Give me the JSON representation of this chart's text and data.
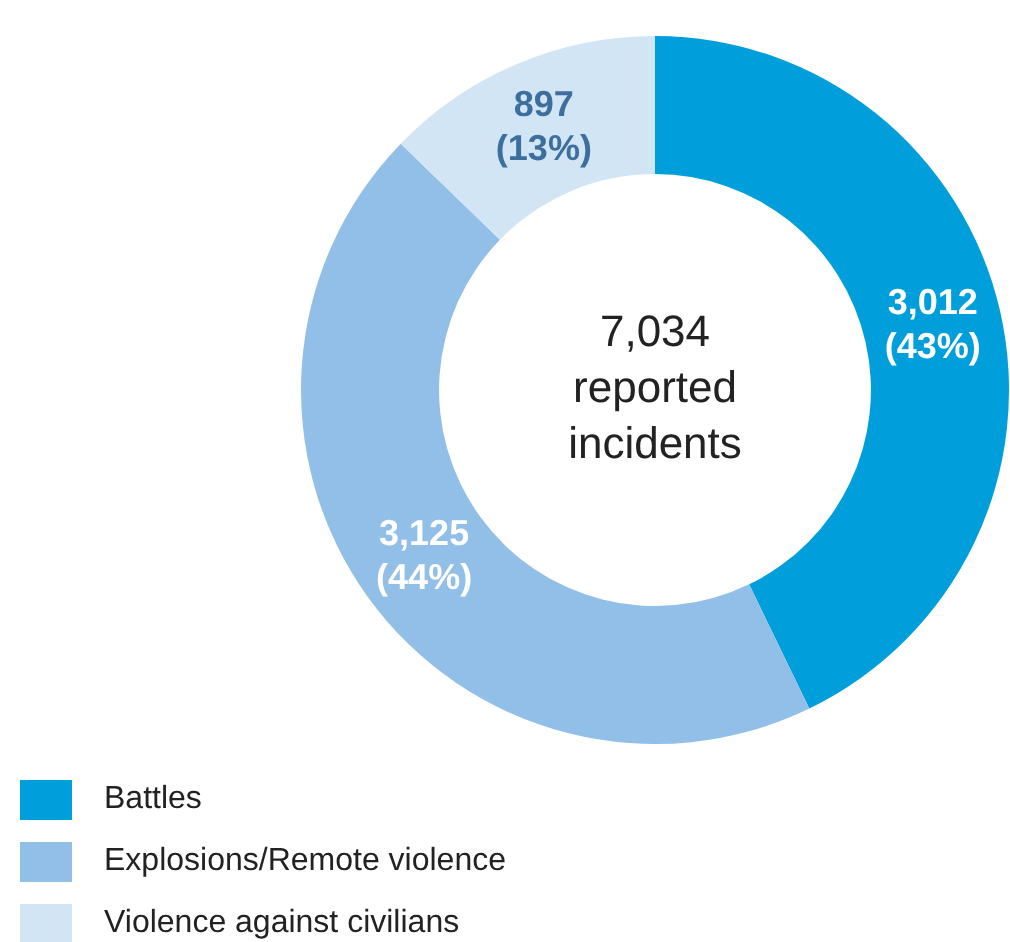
{
  "chart_data": {
    "type": "donut",
    "categories": [
      "Battles",
      "Explosions/Remote violence",
      "Violence against civilians"
    ],
    "values": [
      3012,
      3125,
      897
    ],
    "colors": [
      "#009edb",
      "#92bfe7",
      "#d2e5f5"
    ],
    "value_labels": [
      "3,012 (43%)",
      "3,125 (44%)",
      "897 (13%)"
    ],
    "annotations": [
      "7,034 reported incidents"
    ],
    "legend": "bottom left"
  }
}
